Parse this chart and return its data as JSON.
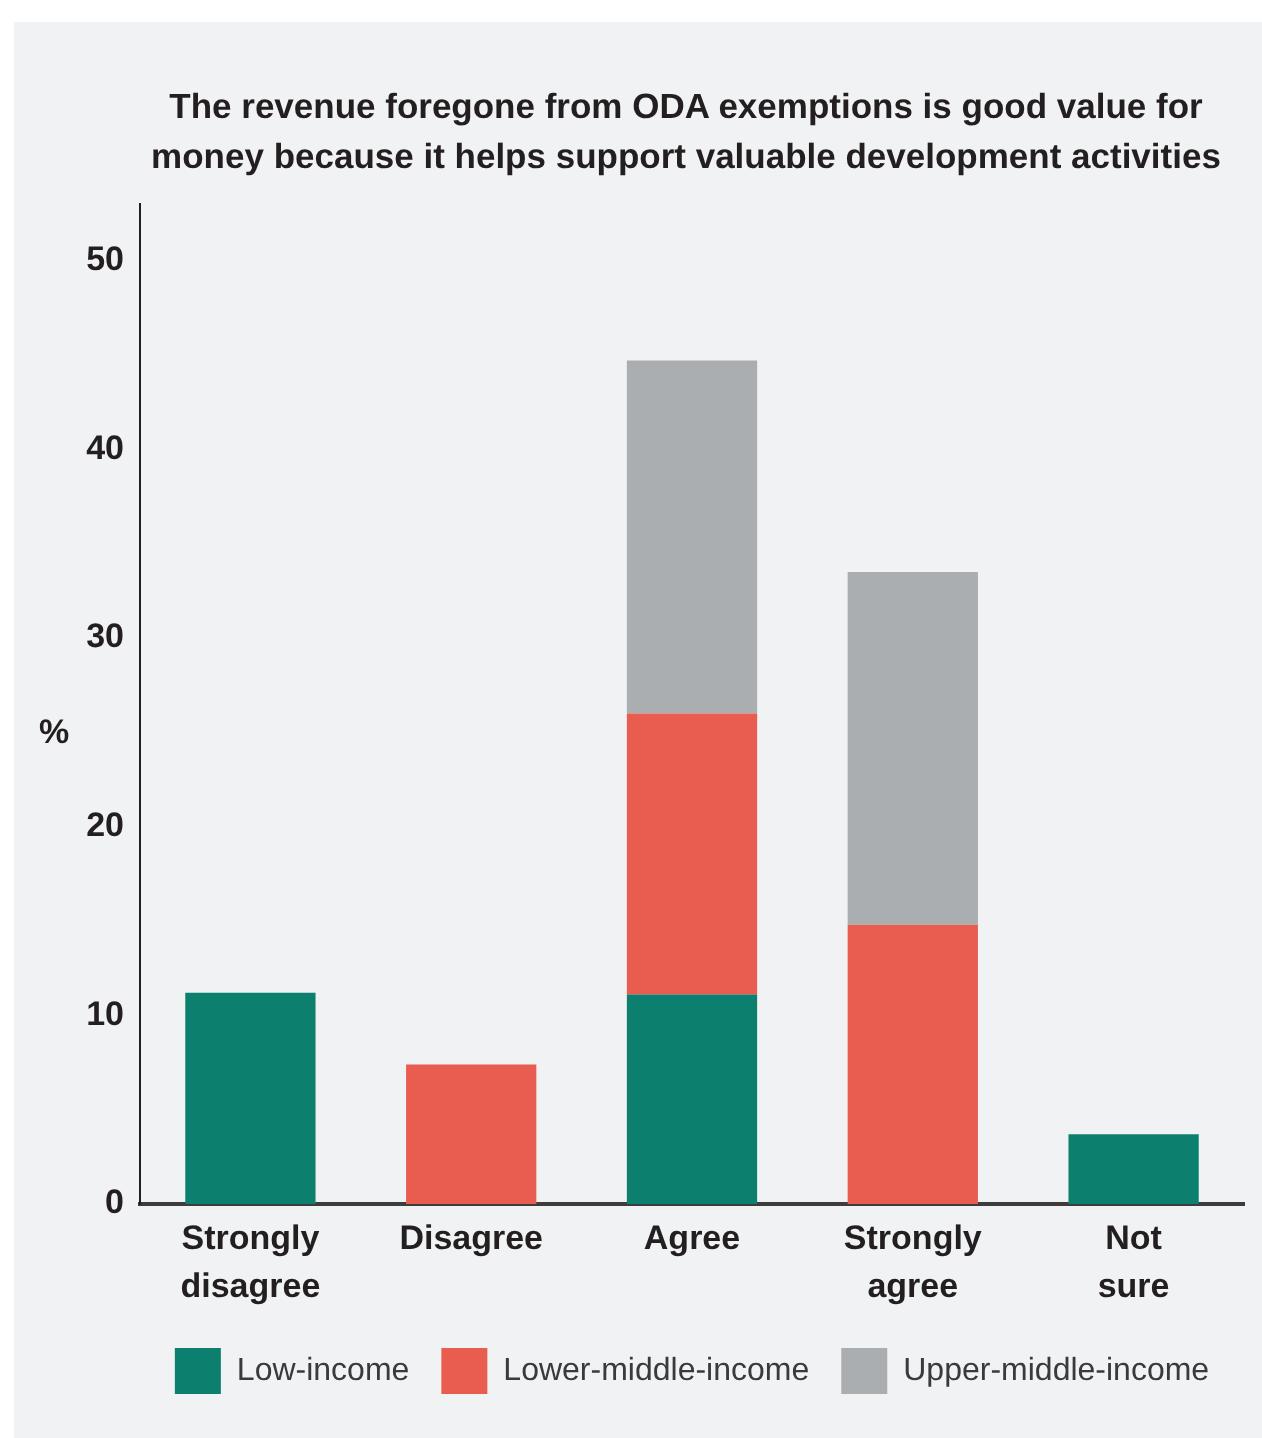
{
  "chart_data": {
    "type": "bar",
    "title": "The revenue foregone from ODA exemptions is good value for money because it helps support valuable development activities",
    "ylabel": "%",
    "categories": [
      "Strongly disagree",
      "Disagree",
      "Agree",
      "Strongly agree",
      "Not sure"
    ],
    "series": [
      {
        "name": "Low-income",
        "color": "#0c7f6e",
        "values": [
          11.2,
          null,
          11.1,
          null,
          3.7
        ]
      },
      {
        "name": "Lower-middle-income",
        "color": "#e85d50",
        "values": [
          null,
          7.4,
          14.9,
          14.8,
          null
        ]
      },
      {
        "name": "Upper-middle-income",
        "color": "#abaeb0",
        "values": [
          null,
          null,
          18.7,
          18.7,
          null
        ]
      }
    ],
    "stacked": true,
    "ylim": [
      0,
      53
    ],
    "yticks": [
      0,
      10,
      20,
      30,
      40,
      50
    ],
    "grid": false,
    "legend": "bottom"
  }
}
